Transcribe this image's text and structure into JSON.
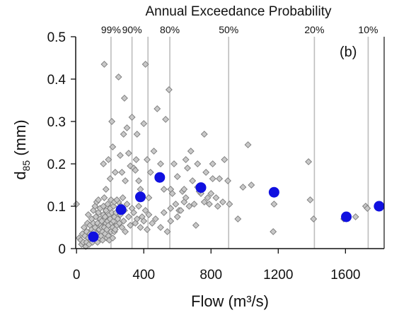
{
  "chart_data": {
    "type": "scatter",
    "top_axis_title": "Annual Exceedance Probability",
    "panel_label": "(b)",
    "xlabel": "Flow (m³/s)",
    "ylabel_main": "d",
    "ylabel_sub": "85",
    "ylabel_unit": " (mm)",
    "xlim": [
      -5,
      1830
    ],
    "ylim": [
      0,
      0.5
    ],
    "x_ticks": [
      {
        "value": 0,
        "label": "0"
      },
      {
        "value": 400,
        "label": "400"
      },
      {
        "value": 800,
        "label": "800"
      },
      {
        "value": 1200,
        "label": "1200"
      },
      {
        "value": 1600,
        "label": "1600"
      }
    ],
    "y_ticks": [
      {
        "value": 0,
        "label": "0"
      },
      {
        "value": 0.1,
        "label": "0.1"
      },
      {
        "value": 0.2,
        "label": "0.2"
      },
      {
        "value": 0.3,
        "label": "0.3"
      },
      {
        "value": 0.4,
        "label": "0.4"
      },
      {
        "value": 0.5,
        "label": "0.5"
      }
    ],
    "probability_lines": [
      {
        "label": "99%",
        "x": 205
      },
      {
        "label": "90%",
        "x": 330
      },
      {
        "label": "",
        "x": 425
      },
      {
        "label": "80%",
        "x": 555
      },
      {
        "label": "50%",
        "x": 905
      },
      {
        "label": "20%",
        "x": 1415
      },
      {
        "label": "10%",
        "x": 1735
      }
    ],
    "colors": {
      "observed_fill": "#c8c8c8",
      "observed_stroke": "#7a7a7a",
      "mean_fill": "#1010e0",
      "line": "#bdbdbd",
      "axis": "#111111"
    },
    "series": [
      {
        "marker": "diamond",
        "points": [
          [
            0,
            0.105
          ],
          [
            15,
            0.025
          ],
          [
            25,
            0.02
          ],
          [
            30,
            0.01
          ],
          [
            35,
            0.035
          ],
          [
            40,
            0.015
          ],
          [
            45,
            0.05
          ],
          [
            50,
            0.03
          ],
          [
            55,
            0.005
          ],
          [
            60,
            0.04
          ],
          [
            60,
            0.015
          ],
          [
            65,
            0.06
          ],
          [
            70,
            0.025
          ],
          [
            70,
            0.08
          ],
          [
            75,
            0.01
          ],
          [
            80,
            0.035
          ],
          [
            80,
            0.055
          ],
          [
            85,
            0.02
          ],
          [
            90,
            0.07
          ],
          [
            90,
            0.045
          ],
          [
            95,
            0.015
          ],
          [
            95,
            0.03
          ],
          [
            100,
            0.09
          ],
          [
            100,
            0.06
          ],
          [
            105,
            0.025
          ],
          [
            105,
            0.04
          ],
          [
            110,
            0.1
          ],
          [
            110,
            0.05
          ],
          [
            115,
            0.075
          ],
          [
            115,
            0.02
          ],
          [
            120,
            0.035
          ],
          [
            120,
            0.11
          ],
          [
            125,
            0.06
          ],
          [
            125,
            0.015
          ],
          [
            130,
            0.115
          ],
          [
            130,
            0.085
          ],
          [
            135,
            0.045
          ],
          [
            135,
            0.025
          ],
          [
            140,
            0.07
          ],
          [
            140,
            0.095
          ],
          [
            145,
            0.03
          ],
          [
            145,
            0.055
          ],
          [
            150,
            0.05
          ],
          [
            150,
            0.065
          ],
          [
            155,
            0.02
          ],
          [
            155,
            0.04
          ],
          [
            160,
            0.08
          ],
          [
            160,
            0.1
          ],
          [
            165,
            0.12
          ],
          [
            165,
            0.05
          ],
          [
            170,
            0.035
          ],
          [
            170,
            0.075
          ],
          [
            175,
            0.06
          ],
          [
            175,
            0.09
          ],
          [
            180,
            0.025
          ],
          [
            180,
            0.045
          ],
          [
            185,
            0.105
          ],
          [
            185,
            0.065
          ],
          [
            190,
            0.055
          ],
          [
            190,
            0.03
          ],
          [
            195,
            0.08
          ],
          [
            195,
            0.02
          ],
          [
            200,
            0.095
          ],
          [
            200,
            0.07
          ],
          [
            205,
            0.04
          ],
          [
            205,
            0.115
          ],
          [
            210,
            0.06
          ],
          [
            210,
            0.085
          ],
          [
            215,
            0.05
          ],
          [
            215,
            0.025
          ],
          [
            220,
            0.1
          ],
          [
            220,
            0.065
          ],
          [
            225,
            0.075
          ],
          [
            225,
            0.04
          ],
          [
            230,
            0.045
          ],
          [
            235,
            0.085
          ],
          [
            240,
            0.055
          ],
          [
            245,
            0.07
          ],
          [
            250,
            0.11
          ],
          [
            255,
            0.06
          ],
          [
            260,
            0.08
          ],
          [
            265,
            0.1
          ],
          [
            270,
            0.05
          ],
          [
            275,
            0.12
          ],
          [
            280,
            0.065
          ],
          [
            285,
            0.09
          ],
          [
            290,
            0.04
          ],
          [
            300,
            0.105
          ],
          [
            310,
            0.075
          ],
          [
            320,
            0.055
          ],
          [
            330,
            0.095
          ],
          [
            340,
            0.085
          ],
          [
            350,
            0.06
          ],
          [
            360,
            0.07
          ],
          [
            370,
            0.1
          ],
          [
            380,
            0.05
          ],
          [
            390,
            0.075
          ],
          [
            400,
            0.065
          ],
          [
            410,
            0.09
          ],
          [
            420,
            0.045
          ],
          [
            430,
            0.08
          ],
          [
            450,
            0.06
          ],
          [
            470,
            0.07
          ],
          [
            500,
            0.05
          ],
          [
            520,
            0.085
          ],
          [
            540,
            0.04
          ],
          [
            160,
            0.2
          ],
          [
            165,
            0.435
          ],
          [
            175,
            0.14
          ],
          [
            190,
            0.21
          ],
          [
            200,
            0.165
          ],
          [
            210,
            0.3
          ],
          [
            215,
            0.24
          ],
          [
            225,
            0.11
          ],
          [
            230,
            0.18
          ],
          [
            240,
            0.115
          ],
          [
            250,
            0.405
          ],
          [
            260,
            0.22
          ],
          [
            270,
            0.18
          ],
          [
            280,
            0.27
          ],
          [
            285,
            0.355
          ],
          [
            290,
            0.16
          ],
          [
            300,
            0.285
          ],
          [
            310,
            0.225
          ],
          [
            320,
            0.195
          ],
          [
            330,
            0.31
          ],
          [
            340,
            0.19
          ],
          [
            350,
            0.185
          ],
          [
            355,
            0.21
          ],
          [
            360,
            0.27
          ],
          [
            370,
            0.16
          ],
          [
            380,
            0.14
          ],
          [
            390,
            0.12
          ],
          [
            400,
            0.295
          ],
          [
            410,
            0.435
          ],
          [
            420,
            0.21
          ],
          [
            430,
            0.12
          ],
          [
            440,
            0.18
          ],
          [
            460,
            0.23
          ],
          [
            480,
            0.33
          ],
          [
            500,
            0.2
          ],
          [
            520,
            0.14
          ],
          [
            530,
            0.305
          ],
          [
            550,
            0.375
          ],
          [
            560,
            0.14
          ],
          [
            570,
            0.13
          ],
          [
            580,
            0.2
          ],
          [
            600,
            0.17
          ],
          [
            610,
            0.09
          ],
          [
            630,
            0.135
          ],
          [
            640,
            0.11
          ],
          [
            650,
            0.21
          ],
          [
            660,
            0.19
          ],
          [
            680,
            0.23
          ],
          [
            700,
            0.105
          ],
          [
            710,
            0.055
          ],
          [
            720,
            0.2
          ],
          [
            740,
            0.13
          ],
          [
            760,
            0.27
          ],
          [
            780,
            0.12
          ],
          [
            790,
            0.105
          ],
          [
            810,
            0.2
          ],
          [
            830,
            0.12
          ],
          [
            850,
            0.165
          ],
          [
            870,
            0.11
          ],
          [
            880,
            0.21
          ],
          [
            900,
            0.16
          ],
          [
            910,
            0.105
          ],
          [
            960,
            0.07
          ],
          [
            990,
            0.145
          ],
          [
            1020,
            0.245
          ],
          [
            1040,
            0.15
          ],
          [
            1170,
            0.04
          ],
          [
            1175,
            0.105
          ],
          [
            1380,
            0.205
          ],
          [
            1390,
            0.115
          ],
          [
            1410,
            0.07
          ],
          [
            1590,
            0.07
          ],
          [
            1720,
            0.1
          ],
          [
            1730,
            0.095
          ],
          [
            1660,
            0.075
          ],
          [
            1800,
            0.1
          ],
          [
            560,
            0.095
          ],
          [
            590,
            0.105
          ],
          [
            620,
            0.09
          ],
          [
            650,
            0.12
          ],
          [
            670,
            0.1
          ],
          [
            730,
            0.135
          ],
          [
            760,
            0.11
          ],
          [
            800,
            0.13
          ],
          [
            840,
            0.1
          ],
          [
            560,
            0.065
          ],
          [
            600,
            0.075
          ],
          [
            640,
            0.14
          ],
          [
            690,
            0.16
          ],
          [
            720,
            0.145
          ],
          [
            770,
            0.18
          ],
          [
            810,
            0.165
          ]
        ]
      },
      {
        "marker": "circle",
        "points": [
          [
            100,
            0.028
          ],
          [
            265,
            0.092
          ],
          [
            380,
            0.122
          ],
          [
            495,
            0.168
          ],
          [
            740,
            0.144
          ],
          [
            1175,
            0.133
          ],
          [
            1605,
            0.075
          ],
          [
            1800,
            0.1
          ]
        ]
      }
    ]
  }
}
